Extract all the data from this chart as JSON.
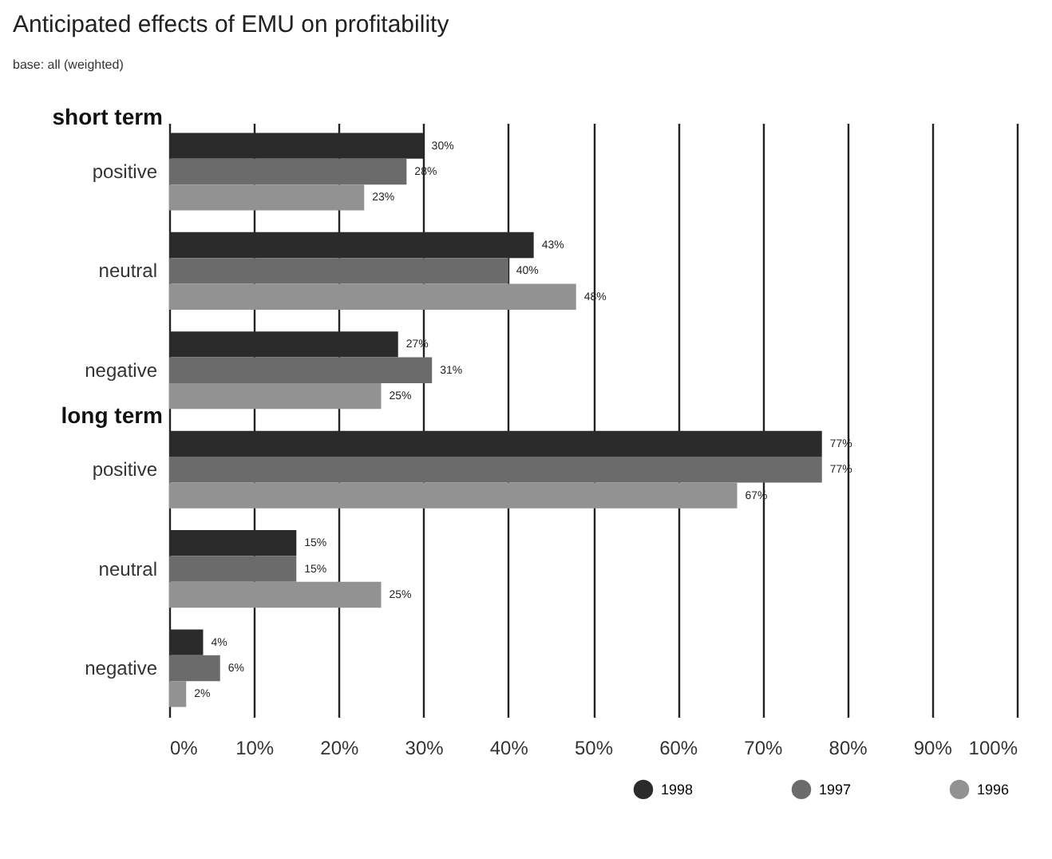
{
  "chart_data": {
    "type": "bar",
    "orientation": "horizontal",
    "title": "Anticipated effects of EMU on profitability",
    "subtitle": "base: all (weighted)",
    "annotations": [
      "short term",
      "long term"
    ],
    "categories": [
      "positive",
      "neutral",
      "negative",
      "positive",
      "neutral",
      "negative"
    ],
    "series": [
      {
        "name": "1998",
        "color": "#2b2b2b",
        "values": [
          30,
          43,
          27,
          77,
          15,
          4
        ],
        "value_labels": [
          "30%",
          "43%",
          "27%",
          "77%",
          "15%",
          "4%"
        ]
      },
      {
        "name": "1997",
        "color": "#6b6b6b",
        "values": [
          28,
          40,
          31,
          77,
          15,
          6
        ],
        "value_labels": [
          "28%",
          "40%",
          "31%",
          "77%",
          "15%",
          "6%"
        ]
      },
      {
        "name": "1996",
        "color": "#929292",
        "values": [
          23,
          48,
          25,
          67,
          25,
          2
        ],
        "value_labels": [
          "23%",
          "48%",
          "25%",
          "67%",
          "25%",
          "2%"
        ]
      }
    ],
    "xlim": [
      0,
      100
    ],
    "xticks": [
      {
        "value": 0,
        "label": "0%"
      },
      {
        "value": 10,
        "label": "10%"
      },
      {
        "value": 20,
        "label": "20%"
      },
      {
        "value": 30,
        "label": "30%"
      },
      {
        "value": 40,
        "label": "40%"
      },
      {
        "value": 50,
        "label": "50%"
      },
      {
        "value": 60,
        "label": "60%"
      },
      {
        "value": 70,
        "label": "70%"
      },
      {
        "value": 80,
        "label": "80%"
      },
      {
        "value": 90,
        "label": "90%"
      },
      {
        "value": 100,
        "label": "100%"
      }
    ],
    "grid": "x",
    "legend": "bottom right"
  }
}
